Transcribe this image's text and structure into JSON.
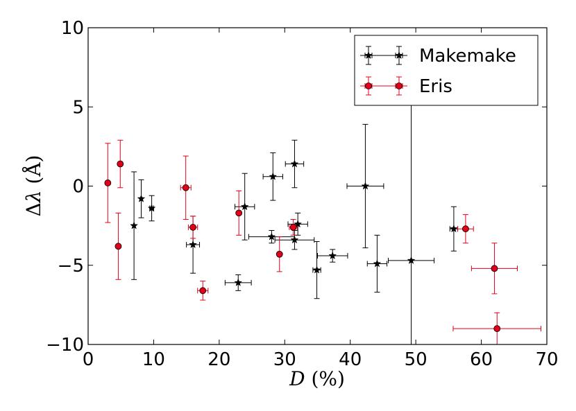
{
  "chart_data": {
    "type": "scatter",
    "xlabel": "D (%)",
    "ylabel": "Δλ (Å)",
    "xlim": [
      0,
      70
    ],
    "ylim": [
      -10,
      10
    ],
    "x_ticks": [
      "0",
      "10",
      "20",
      "30",
      "40",
      "50",
      "60",
      "70"
    ],
    "y_ticks": [
      "10",
      "5",
      "0",
      "−5",
      "−10"
    ],
    "legend_position": "top-right",
    "series": [
      {
        "name": "Makemake",
        "color": "#000000",
        "marker": "star",
        "points": [
          {
            "x": 7.0,
            "y": -2.5,
            "xerr": 0,
            "yerr": 3.4
          },
          {
            "x": 8.1,
            "y": -0.8,
            "xerr": 0,
            "yerr": 1.2
          },
          {
            "x": 9.7,
            "y": -1.4,
            "xerr": 0.3,
            "yerr": 0.8
          },
          {
            "x": 16.0,
            "y": -3.7,
            "xerr": 1.0,
            "yerr": 1.8
          },
          {
            "x": 22.9,
            "y": -6.1,
            "xerr": 2.0,
            "yerr": 0.5
          },
          {
            "x": 23.9,
            "y": -1.3,
            "xerr": 1.5,
            "yerr": 2.1
          },
          {
            "x": 28.0,
            "y": -3.2,
            "xerr": 3.5,
            "yerr": 0.4
          },
          {
            "x": 28.2,
            "y": 0.6,
            "xerr": 1.5,
            "yerr": 1.5
          },
          {
            "x": 31.5,
            "y": -3.4,
            "xerr": 3.0,
            "yerr": 0.6
          },
          {
            "x": 31.5,
            "y": 1.4,
            "xerr": 1.4,
            "yerr": 1.5
          },
          {
            "x": 32.0,
            "y": -2.4,
            "xerr": 1.5,
            "yerr": 0.7
          },
          {
            "x": 34.9,
            "y": -5.3,
            "xerr": 0.6,
            "yerr": 1.8
          },
          {
            "x": 37.3,
            "y": -4.4,
            "xerr": 2.3,
            "yerr": 0.4
          },
          {
            "x": 42.3,
            "y": 0.0,
            "xerr": 2.8,
            "yerr": 3.9
          },
          {
            "x": 44.1,
            "y": -4.9,
            "xerr": 1.5,
            "yerr": 1.8
          },
          {
            "x": 49.3,
            "y": -4.7,
            "xerr": 3.5,
            "yerr": 10.0
          },
          {
            "x": 55.8,
            "y": -2.7,
            "xerr": 0.6,
            "yerr": 1.4
          }
        ]
      },
      {
        "name": "Eris",
        "color": "#e0001a",
        "marker": "circle",
        "points": [
          {
            "x": 3.0,
            "y": 0.2,
            "xerr": 0,
            "yerr": 2.5
          },
          {
            "x": 4.6,
            "y": -3.8,
            "xerr": 0,
            "yerr": 2.1
          },
          {
            "x": 4.9,
            "y": 1.4,
            "xerr": 0,
            "yerr": 1.5
          },
          {
            "x": 14.9,
            "y": -0.1,
            "xerr": 0.8,
            "yerr": 2.0
          },
          {
            "x": 16.0,
            "y": -2.6,
            "xerr": 0.7,
            "yerr": 0.7
          },
          {
            "x": 17.5,
            "y": -6.6,
            "xerr": 0.8,
            "yerr": 0.6
          },
          {
            "x": 23.0,
            "y": -1.7,
            "xerr": 0,
            "yerr": 1.4
          },
          {
            "x": 29.2,
            "y": -4.3,
            "xerr": 0,
            "yerr": 1.1
          },
          {
            "x": 31.3,
            "y": -2.6,
            "xerr": 0.6,
            "yerr": 0.5
          },
          {
            "x": 57.6,
            "y": -2.7,
            "xerr": 1.2,
            "yerr": 0.9
          },
          {
            "x": 62.0,
            "y": -5.2,
            "xerr": 3.5,
            "yerr": 1.6
          },
          {
            "x": 62.4,
            "y": -9.0,
            "xerr": 6.7,
            "yerr": 1.0
          }
        ]
      }
    ]
  }
}
